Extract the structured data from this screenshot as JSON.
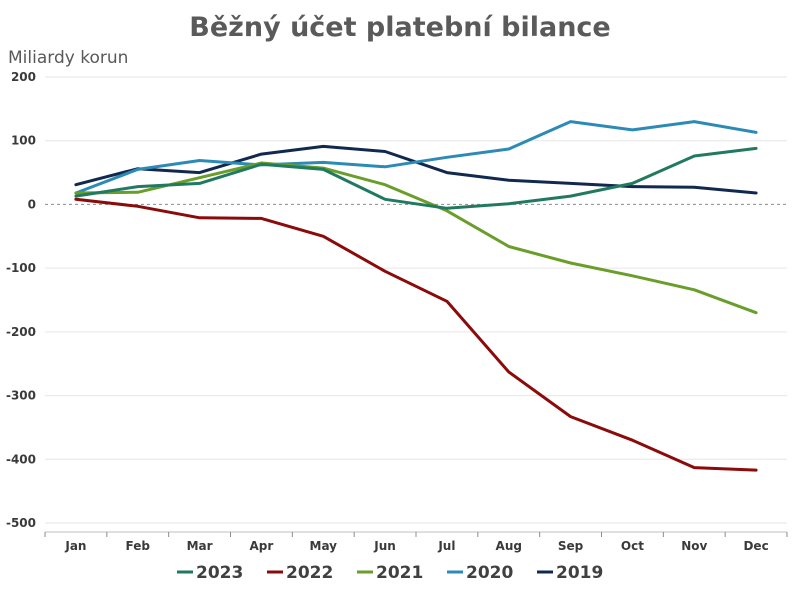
{
  "chart_data": {
    "type": "line",
    "title": "Běžný účet platební bilance",
    "ylabel": "Miliardy korun",
    "xlabel": "",
    "categories": [
      "Jan",
      "Feb",
      "Mar",
      "Apr",
      "May",
      "Jun",
      "Jul",
      "Aug",
      "Sep",
      "Oct",
      "Nov",
      "Dec"
    ],
    "ylim": [
      -500,
      200
    ],
    "yticks": [
      200,
      100,
      0,
      -100,
      -200,
      -300,
      -400,
      -500
    ],
    "ytick_labels": [
      "200",
      "100",
      "0",
      "-100",
      "-200",
      "-300",
      "-400",
      "-500"
    ],
    "grid": true,
    "legend_position": "bottom",
    "series": [
      {
        "name": "2023",
        "color": "#217a5f",
        "values": [
          13,
          28,
          33,
          63,
          55,
          8,
          -6,
          1,
          13,
          33,
          76,
          88
        ]
      },
      {
        "name": "2022",
        "color": "#8b0a0a",
        "values": [
          8,
          -3,
          -21,
          -22,
          -50,
          -105,
          -152,
          -263,
          -333,
          -370,
          -413,
          -417
        ]
      },
      {
        "name": "2021",
        "color": "#6a9e2a",
        "values": [
          18,
          19,
          42,
          65,
          57,
          31,
          -10,
          -66,
          -92,
          -112,
          -134,
          -170
        ]
      },
      {
        "name": "2020",
        "color": "#2c8bb5",
        "values": [
          18,
          55,
          69,
          62,
          66,
          59,
          74,
          87,
          130,
          117,
          130,
          113
        ]
      },
      {
        "name": "2019",
        "color": "#11294f",
        "values": [
          31,
          56,
          50,
          79,
          91,
          83,
          50,
          38,
          33,
          28,
          27,
          18
        ]
      }
    ]
  }
}
